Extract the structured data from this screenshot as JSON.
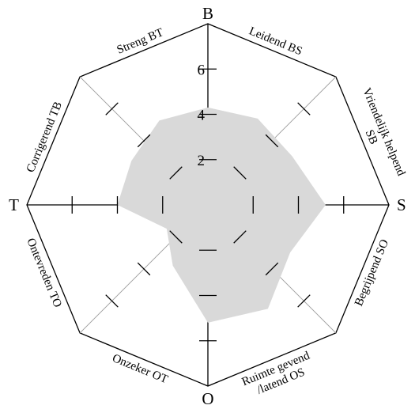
{
  "chart_data": {
    "type": "radar",
    "axes": [
      {
        "key": "B",
        "label": "B"
      },
      {
        "key": "S",
        "label": "S"
      },
      {
        "key": "O",
        "label": "O"
      },
      {
        "key": "T",
        "label": "T"
      }
    ],
    "octants": [
      {
        "key": "BS",
        "lines": [
          "Leidend BS"
        ]
      },
      {
        "key": "SB",
        "lines": [
          "Vriendelijk helpend",
          "SB"
        ]
      },
      {
        "key": "SO",
        "lines": [
          "Begrijpend SO"
        ]
      },
      {
        "key": "OS",
        "lines": [
          "Ruimte gevend",
          "/latend OS"
        ]
      },
      {
        "key": "OT",
        "lines": [
          "Onzeker OT"
        ]
      },
      {
        "key": "TO",
        "lines": [
          "Ontevreden TO"
        ]
      },
      {
        "key": "TB",
        "lines": [
          "Corrigerend TB"
        ]
      },
      {
        "key": "BT",
        "lines": [
          "Streng BT"
        ]
      }
    ],
    "rmax": 8,
    "ticks": [
      2,
      4,
      6
    ],
    "tick_labels": [
      "2",
      "4",
      "6"
    ],
    "series": [
      {
        "color": "#d9d9d9",
        "points": [
          {
            "dir": "B",
            "value": 4.3
          },
          {
            "dir": "BS",
            "value": 4.4
          },
          {
            "dir": "SB",
            "value": 4.3
          },
          {
            "dir": "S",
            "value": 5.2
          },
          {
            "dir": "SO",
            "value": 4.2
          },
          {
            "dir": "OS",
            "value": 5.3
          },
          {
            "dir": "O",
            "value": 5.2
          },
          {
            "dir": "OT",
            "value": 3.1
          },
          {
            "dir": "TO",
            "value": 2.1
          },
          {
            "dir": "T",
            "value": 4.0
          },
          {
            "dir": "TB",
            "value": 3.9
          },
          {
            "dir": "BT",
            "value": 4.3
          }
        ]
      }
    ]
  }
}
